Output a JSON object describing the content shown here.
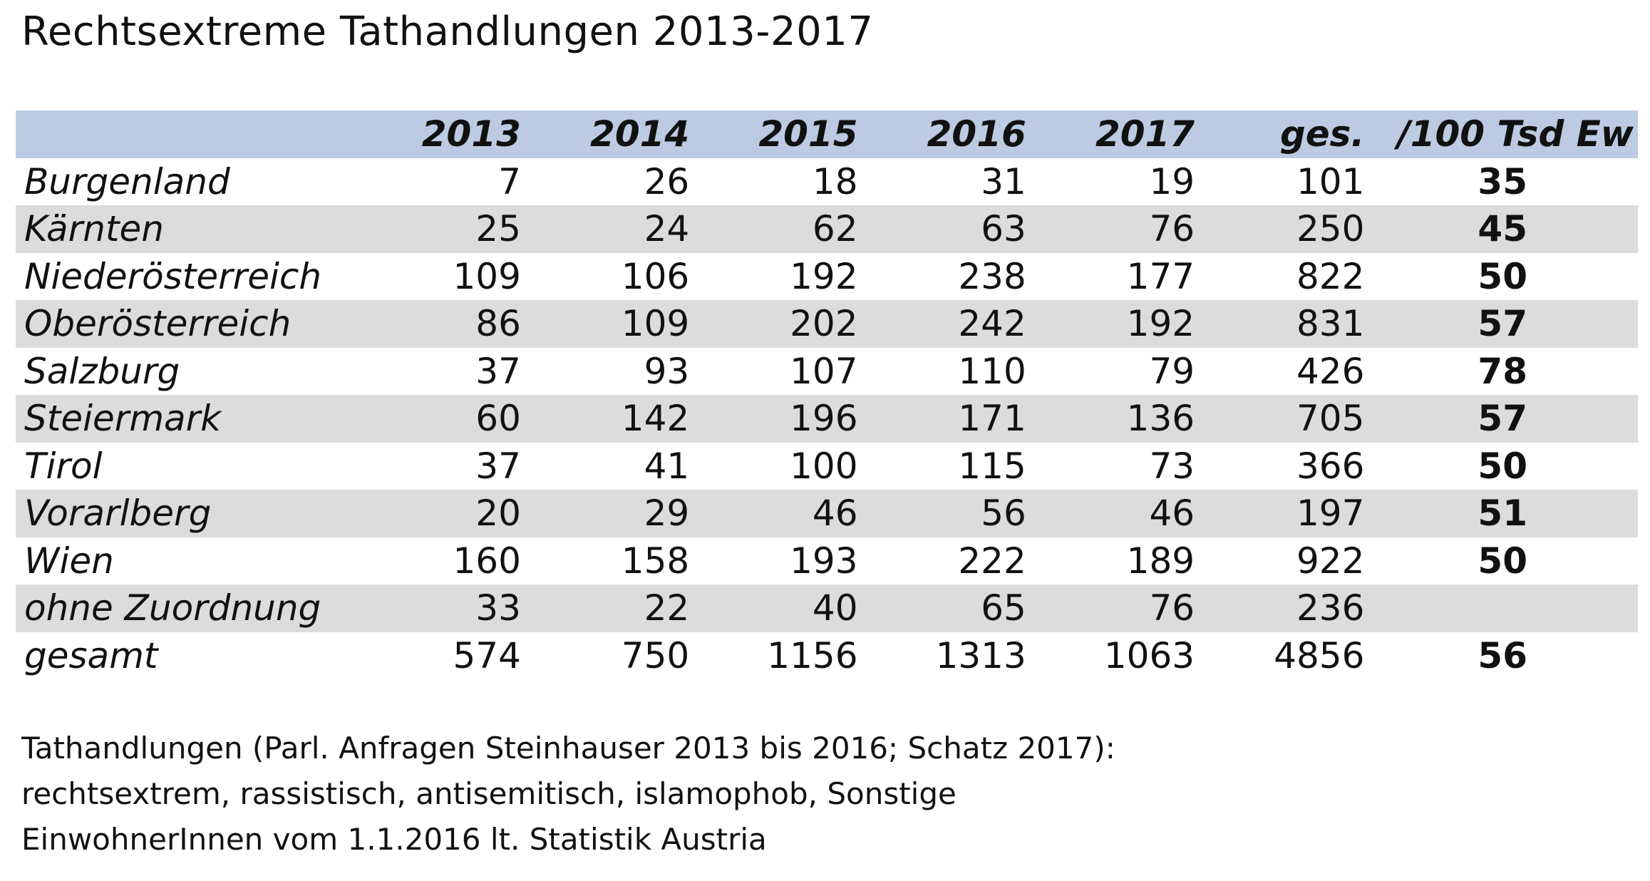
{
  "title": "Rechtsextreme Tathandlungen 2013-2017",
  "chart_data": {
    "type": "table",
    "title": "Rechtsextreme Tathandlungen 2013-2017",
    "columns": [
      "",
      "2013",
      "2014",
      "2015",
      "2016",
      "2017",
      "ges.",
      "/100 Tsd Ew"
    ],
    "rows": [
      {
        "region": "Burgenland",
        "values": [
          "7",
          "26",
          "18",
          "31",
          "19",
          "101"
        ],
        "rate": "35"
      },
      {
        "region": "Kärnten",
        "values": [
          "25",
          "24",
          "62",
          "63",
          "76",
          "250"
        ],
        "rate": "45"
      },
      {
        "region": "Niederösterreich",
        "values": [
          "109",
          "106",
          "192",
          "238",
          "177",
          "822"
        ],
        "rate": "50"
      },
      {
        "region": "Oberösterreich",
        "values": [
          "86",
          "109",
          "202",
          "242",
          "192",
          "831"
        ],
        "rate": "57"
      },
      {
        "region": "Salzburg",
        "values": [
          "37",
          "93",
          "107",
          "110",
          "79",
          "426"
        ],
        "rate": "78"
      },
      {
        "region": "Steiermark",
        "values": [
          "60",
          "142",
          "196",
          "171",
          "136",
          "705"
        ],
        "rate": "57"
      },
      {
        "region": "Tirol",
        "values": [
          "37",
          "41",
          "100",
          "115",
          "73",
          "366"
        ],
        "rate": "50"
      },
      {
        "region": "Vorarlberg",
        "values": [
          "20",
          "29",
          "46",
          "56",
          "46",
          "197"
        ],
        "rate": "51"
      },
      {
        "region": "Wien",
        "values": [
          "160",
          "158",
          "193",
          "222",
          "189",
          "922"
        ],
        "rate": "50"
      },
      {
        "region": "ohne Zuordnung",
        "values": [
          "33",
          "22",
          "40",
          "65",
          "76",
          "236"
        ],
        "rate": ""
      },
      {
        "region": "gesamt",
        "values": [
          "574",
          "750",
          "1156",
          "1313",
          "1063",
          "4856"
        ],
        "rate": "56"
      }
    ]
  },
  "colors": {
    "header_bg": "#bccbe2",
    "row_shade": "#dcdcdc"
  },
  "notes": [
    "Tathandlungen (Parl. Anfragen Steinhauser 2013 bis 2016; Schatz 2017):",
    "rechtsextrem, rassistisch, antisemitisch, islamophob, Sonstige",
    "EinwohnerInnen vom 1.1.2016 lt. Statistik Austria"
  ]
}
